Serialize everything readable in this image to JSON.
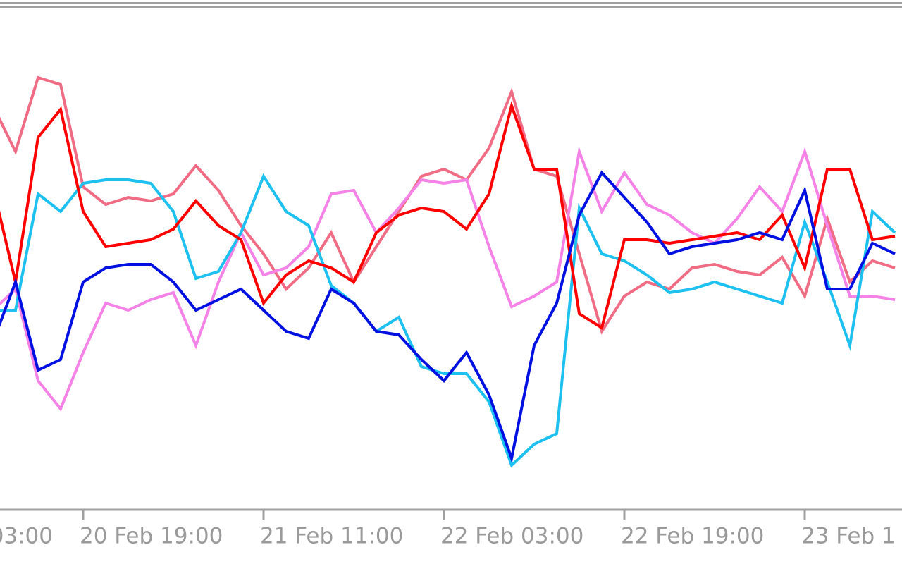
{
  "chart_data": {
    "type": "line",
    "categories": [
      null,
      null,
      null,
      null,
      "20 Feb 19:00",
      null,
      null,
      null,
      null,
      null,
      null,
      null,
      "21 Feb 11:00",
      null,
      null,
      null,
      null,
      null,
      null,
      null,
      "22 Feb 03:00",
      null,
      null,
      null,
      null,
      null,
      null,
      null,
      "22 Feb 19:00",
      null,
      null,
      null,
      null,
      null,
      null,
      null,
      "23 Feb 1",
      null,
      null,
      null,
      null
    ],
    "x_edge_label": "03:00",
    "ylim": [
      0,
      70
    ],
    "series": [
      {
        "color": "#f06c84",
        "values": [
          57,
          50.5,
          61,
          60,
          45.5,
          43,
          44,
          43.5,
          44.5,
          48.5,
          45,
          40,
          36,
          31,
          34,
          39,
          32,
          37,
          42,
          47,
          48,
          46.5,
          51,
          59,
          48,
          47,
          36,
          25,
          30,
          32,
          31,
          34,
          34.5,
          33.5,
          33,
          35.5,
          30,
          41,
          32,
          35,
          34
        ]
      },
      {
        "color": "#f582e6",
        "values": [
          28,
          31,
          18,
          14,
          22,
          29,
          28,
          29.5,
          30.5,
          23,
          32,
          39,
          33,
          34,
          37,
          44.5,
          45,
          39,
          42.5,
          46.5,
          46,
          46.5,
          37,
          28.5,
          30,
          32,
          50.5,
          42,
          47.5,
          43,
          41.5,
          39,
          37.5,
          41,
          45.5,
          42,
          50.5,
          40,
          30,
          30,
          29.5
        ]
      },
      {
        "color": "#1ec0f0",
        "values": [
          28,
          28,
          44.5,
          42,
          46,
          46.5,
          46.5,
          46,
          42,
          32.5,
          33.5,
          39,
          47,
          42,
          40,
          31.5,
          29,
          25,
          27,
          20,
          19,
          19,
          15,
          6,
          9,
          10.5,
          42.5,
          36,
          35,
          33,
          30.5,
          31,
          32,
          31,
          30,
          29,
          40.5,
          32,
          23,
          42,
          39
        ]
      },
      {
        "color": "#ff0000",
        "values": [
          45.5,
          32,
          52.5,
          56.5,
          42,
          37,
          37.5,
          38,
          39.5,
          43.5,
          40,
          38,
          29,
          33,
          35,
          34,
          32,
          39,
          41.5,
          42.5,
          42,
          39.5,
          44.5,
          57,
          48,
          48,
          27.5,
          25.5,
          38,
          38,
          37.5,
          38,
          38.5,
          39,
          38,
          41.5,
          34,
          48,
          48,
          38,
          38.5
        ]
      },
      {
        "color": "#0010e0",
        "values": [
          23.5,
          32,
          19.5,
          21,
          32,
          34,
          34.5,
          34.5,
          32,
          28,
          29.5,
          31,
          28,
          25,
          24,
          31,
          29,
          25,
          24.5,
          21,
          18,
          22,
          16,
          7,
          23,
          29,
          41.5,
          47.5,
          44,
          40.5,
          36,
          37,
          37.5,
          38,
          39,
          38,
          45,
          31,
          31,
          37.5,
          36
        ]
      }
    ]
  }
}
